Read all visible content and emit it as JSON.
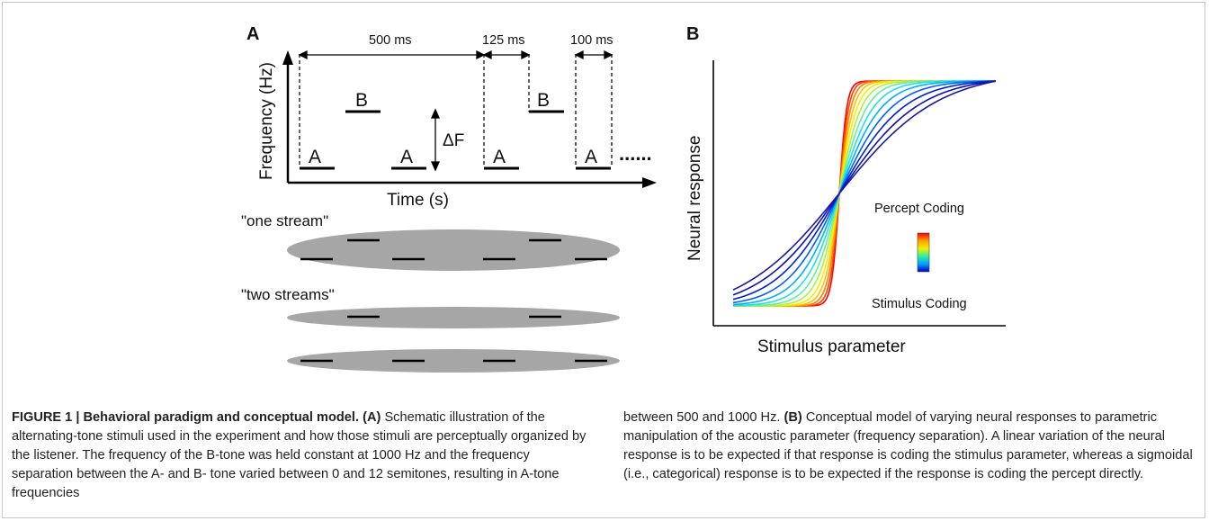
{
  "panel_a": {
    "label": "A",
    "y_axis_label": "Frequency (Hz)",
    "x_axis_label": "Time (s)",
    "dim_500": "500 ms",
    "dim_125": "125 ms",
    "dim_100": "100 ms",
    "delta_f": "ΔF",
    "tone_a": "A",
    "tone_b": "B",
    "continuation": "......",
    "one_stream_label": "\"one stream\"",
    "two_streams_label": "\"two streams\""
  },
  "panel_b": {
    "label": "B",
    "y_axis_label": "Neural response",
    "x_axis_label": "Stimulus parameter",
    "legend_top": "Percept Coding",
    "legend_bottom": "Stimulus Coding",
    "colors": [
      "#ff0000",
      "#ff4000",
      "#ff8000",
      "#ffc000",
      "#f0f000",
      "#b0f040",
      "#60f0a0",
      "#20e0e0",
      "#00b0ff",
      "#0060ff",
      "#0020d0",
      "#1010b0",
      "#1a1aa0"
    ]
  },
  "caption": {
    "figure_label": "FIGURE 1 | Behavioral paradigm and conceptual model.",
    "left_a": "(A)",
    "left_text": "Schematic illustration of the alternating-tone stimuli used in the experiment and how those stimuli are perceptually organized by the listener. The frequency of the B-tone was held constant at 1000 Hz and the frequency separation between the A- and B- tone varied between 0 and 12 semitones, resulting in A-tone frequencies",
    "right_text_1": "between 500 and 1000 Hz.",
    "right_b": "(B)",
    "right_text_2": "Conceptual model of varying neural responses to parametric manipulation of the acoustic parameter (frequency separation). A linear variation of the neural response is to be expected if that response is coding the stimulus parameter, whereas a sigmoidal (i.e., categorical) response is to be expected if the response is coding the percept directly."
  }
}
